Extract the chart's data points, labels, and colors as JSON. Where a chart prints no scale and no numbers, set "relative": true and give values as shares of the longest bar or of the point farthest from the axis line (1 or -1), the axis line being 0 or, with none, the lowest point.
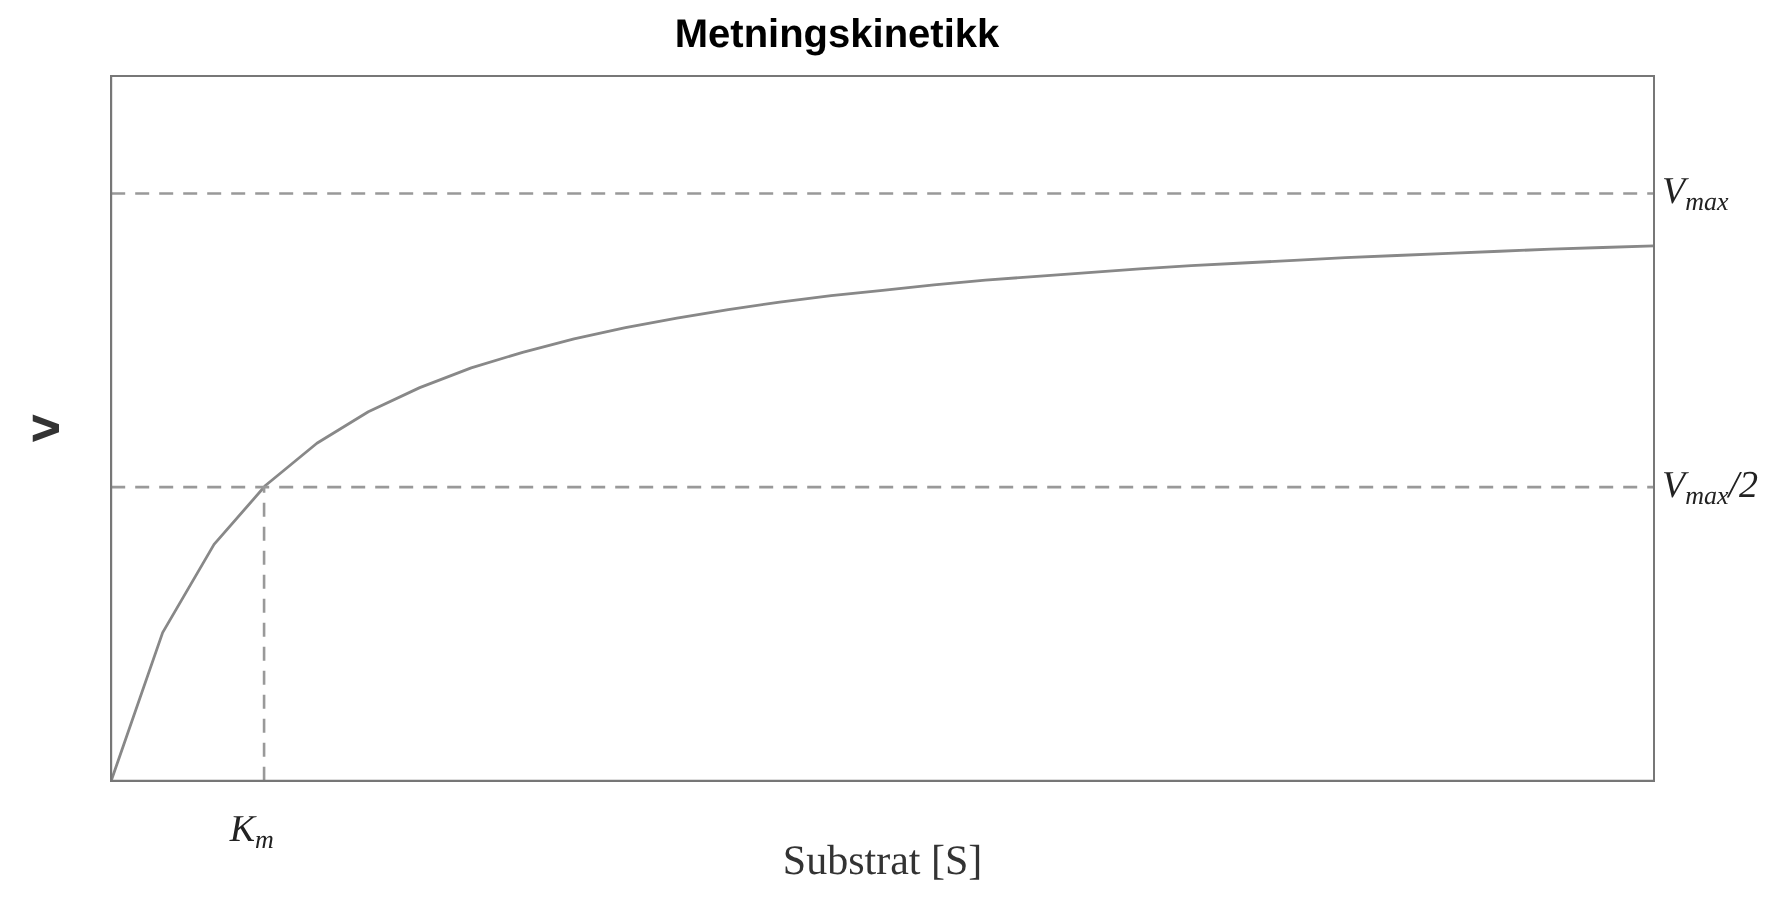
{
  "chart_data": {
    "type": "line",
    "title": "Metningskinetikk",
    "xlabel": "Substrat [S]",
    "ylabel": "V",
    "relative": true,
    "grid": false,
    "legend": false,
    "marker": "none",
    "line_style": "solid",
    "categories": [
      null,
      null,
      null,
      null,
      null,
      null,
      null,
      null,
      null,
      null,
      null,
      null,
      null,
      null,
      null,
      null,
      null,
      null,
      null,
      null,
      null,
      null,
      null,
      null,
      null,
      null,
      null,
      null,
      null,
      null,
      null
    ],
    "series": [
      {
        "color": "#888888",
        "values": [
          0,
          0.277,
          0.442,
          0.552,
          0.631,
          0.69,
          0.735,
          0.772,
          0.801,
          0.826,
          0.847,
          0.865,
          0.881,
          0.895,
          0.907,
          0.917,
          0.927,
          0.936,
          0.943,
          0.95,
          0.957,
          0.963,
          0.968,
          0.973,
          0.978,
          0.982,
          0.986,
          0.99,
          0.994,
          0.997,
          1
        ]
      }
    ],
    "ref_lines": [
      {
        "axis": "y",
        "value": 1.098,
        "label": "V$_{max}$",
        "color": "#999999",
        "line_style": "dashed"
      },
      {
        "axis": "y",
        "value": 0.549,
        "label": "V$_{max}$/2",
        "color": "#999999",
        "line_style": "dashed"
      }
    ],
    "annotations": [
      "K$_{m}$"
    ]
  }
}
